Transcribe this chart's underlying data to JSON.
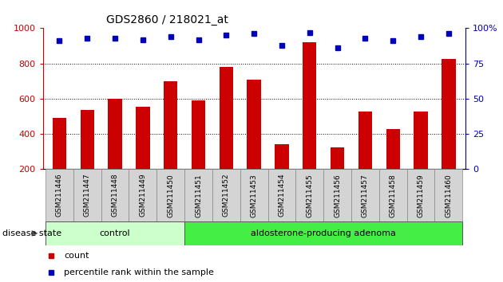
{
  "title": "GDS2860 / 218021_at",
  "samples": [
    "GSM211446",
    "GSM211447",
    "GSM211448",
    "GSM211449",
    "GSM211450",
    "GSM211451",
    "GSM211452",
    "GSM211453",
    "GSM211454",
    "GSM211455",
    "GSM211456",
    "GSM211457",
    "GSM211458",
    "GSM211459",
    "GSM211460"
  ],
  "counts": [
    490,
    535,
    600,
    555,
    700,
    590,
    780,
    710,
    340,
    920,
    325,
    525,
    430,
    525,
    825
  ],
  "percentile": [
    91,
    93,
    93,
    92,
    94,
    92,
    95,
    96,
    88,
    97,
    86,
    93,
    91,
    94,
    96
  ],
  "groups": [
    {
      "label": "control",
      "start": 0,
      "end": 5,
      "color": "#ccffcc"
    },
    {
      "label": "aldosterone-producing adenoma",
      "start": 5,
      "end": 15,
      "color": "#44ee44"
    }
  ],
  "bar_color": "#cc0000",
  "dot_color": "#0000bb",
  "ylim_left": [
    200,
    1000
  ],
  "ylim_right": [
    0,
    100
  ],
  "yticks_left": [
    200,
    400,
    600,
    800,
    1000
  ],
  "yticks_right": [
    0,
    25,
    50,
    75,
    100
  ],
  "yticklabels_right": [
    "0",
    "25",
    "50",
    "75",
    "100%"
  ],
  "grid_vals": [
    400,
    600,
    800
  ],
  "background_color": "#ffffff",
  "legend_count_label": "count",
  "legend_pct_label": "percentile rank within the sample",
  "disease_state_label": "disease state",
  "title_fontsize": 10,
  "axis_label_color_left": "#cc0000",
  "axis_label_color_right": "#0000bb"
}
